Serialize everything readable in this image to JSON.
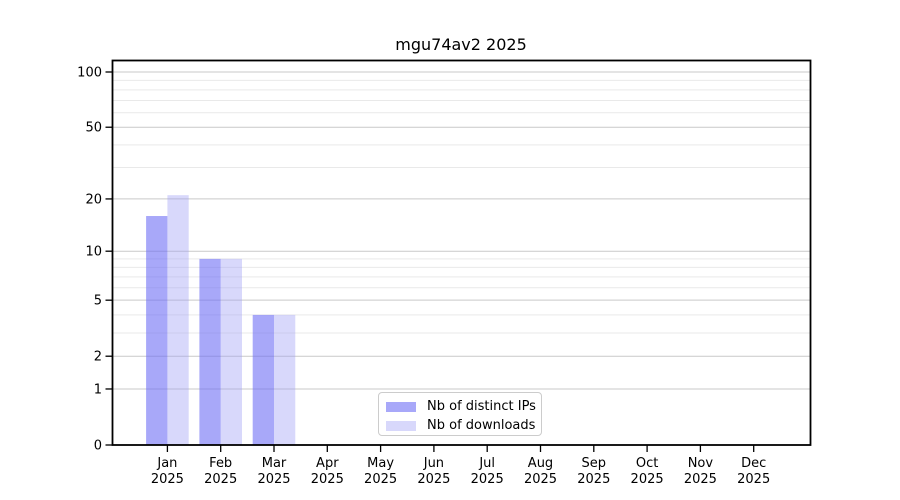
{
  "title": "mgu74av2 2025",
  "chart_data": {
    "type": "bar",
    "title": "mgu74av2 2025",
    "categories": [
      "Jan",
      "Feb",
      "Mar",
      "Apr",
      "May",
      "Jun",
      "Jul",
      "Aug",
      "Sep",
      "Oct",
      "Nov",
      "Dec"
    ],
    "year": "2025",
    "series": [
      {
        "name": "Nb of distinct IPs",
        "key": "ips",
        "color": "rgba(110,110,245,0.6)",
        "values": [
          16,
          9,
          4,
          0,
          0,
          0,
          0,
          0,
          0,
          0,
          0,
          0
        ]
      },
      {
        "name": "Nb of downloads",
        "key": "downloads",
        "color": "rgba(158,158,245,0.4)",
        "values": [
          21,
          9,
          4,
          0,
          0,
          0,
          0,
          0,
          0,
          0,
          0,
          0
        ]
      }
    ],
    "xlabel": "",
    "ylabel": "",
    "y_scale": "log10(1+y)",
    "y_major_ticks": [
      0,
      1,
      2,
      5,
      10,
      20,
      50,
      100
    ],
    "y_minor_gridlines": [
      3,
      4,
      6,
      7,
      8,
      9,
      30,
      40,
      60,
      70,
      80,
      90
    ],
    "ylim": [
      0,
      116
    ],
    "grid": true,
    "legend_position": "lower center",
    "colors": {
      "bar_distinct_ips": "rgba(110,110,245,0.6)",
      "bar_downloads": "rgba(158,158,245,0.4)",
      "grid_major": "#c9c9c9",
      "grid_minor": "#e9e9e9",
      "axis": "#000000",
      "text": "#000000",
      "legend_border": "#cccccc"
    }
  }
}
